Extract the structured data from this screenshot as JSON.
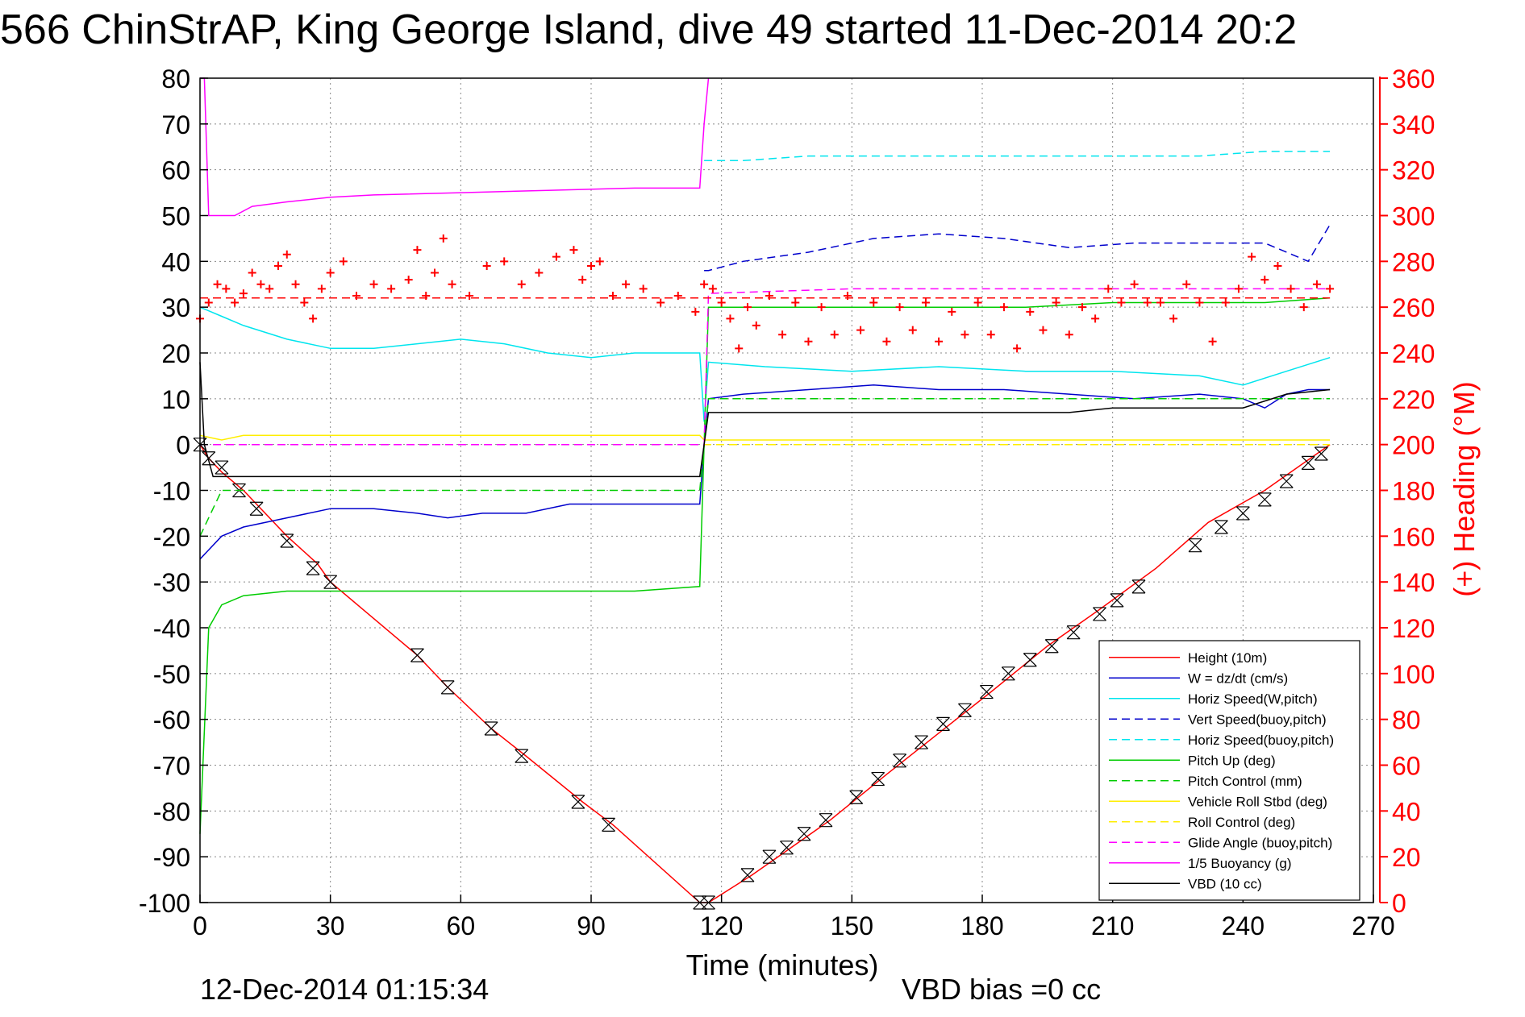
{
  "chart_data": {
    "type": "line",
    "title": "566 ChinStrAP, King George Island, dive 49 started 11-Dec-2014 20:2",
    "xlabel": "Time (minutes)",
    "ylabel": "",
    "y2label": "(+) Heading (°M)",
    "footer_left": "12-Dec-2014 01:15:34",
    "footer_right": "VBD bias =0 cc",
    "xlim": [
      0,
      270
    ],
    "ylim": [
      -100,
      80
    ],
    "y2lim": [
      0,
      360
    ],
    "xticks": [
      0,
      30,
      60,
      90,
      120,
      150,
      180,
      210,
      240,
      270
    ],
    "yticks": [
      80,
      70,
      60,
      50,
      40,
      30,
      20,
      10,
      0,
      -10,
      -20,
      -30,
      -40,
      -50,
      -60,
      -70,
      -80,
      -90,
      -100
    ],
    "y2ticks": [
      360,
      340,
      320,
      300,
      280,
      260,
      240,
      220,
      200,
      180,
      160,
      140,
      120,
      100,
      80,
      60,
      40,
      20,
      0
    ],
    "grid": true,
    "legend_position": "bottom-right",
    "colors": {
      "axis": "#000000",
      "right_axis": "#ff0000",
      "grid": "#888888"
    },
    "series": [
      {
        "name": "Height (10m)",
        "color": "#ff0000",
        "dash": "solid",
        "axis": "left",
        "x": [
          0,
          2,
          5,
          10,
          15,
          20,
          27,
          30,
          50,
          57,
          67,
          75,
          88,
          95,
          115,
          117,
          127,
          133,
          145,
          158,
          170,
          182,
          195,
          207,
          220,
          232,
          245,
          260
        ],
        "y": [
          0,
          -3,
          -6,
          -10,
          -15,
          -20,
          -26,
          -30,
          -46,
          -53,
          -62,
          -68,
          -78,
          -83,
          -100,
          -100,
          -94,
          -90,
          -82,
          -72,
          -63,
          -54,
          -44,
          -36,
          -27,
          -17,
          -10,
          0
        ],
        "markers_x": [
          0,
          2,
          5,
          9,
          13,
          20,
          26,
          30,
          50,
          57,
          67,
          74,
          87,
          94,
          115,
          117,
          126,
          131,
          135,
          139,
          144,
          151,
          156,
          161,
          166,
          171,
          176,
          181,
          186,
          191,
          196,
          201,
          207,
          211,
          216,
          229,
          235,
          240,
          245,
          250,
          255,
          258
        ],
        "markers_y": [
          0,
          -3,
          -5,
          -10,
          -14,
          -21,
          -27,
          -30,
          -46,
          -53,
          -62,
          -68,
          -78,
          -83,
          -100,
          -100,
          -94,
          -90,
          -88,
          -85,
          -82,
          -77,
          -73,
          -69,
          -65,
          -61,
          -58,
          -54,
          -50,
          -47,
          -44,
          -41,
          -37,
          -34,
          -31,
          -22,
          -18,
          -15,
          -12,
          -8,
          -4,
          -2
        ]
      },
      {
        "name": "W = dz/dt (cm/s)",
        "color": "#0000cc",
        "dash": "solid",
        "axis": "left",
        "x": [
          0,
          5,
          10,
          20,
          30,
          40,
          50,
          57,
          65,
          75,
          85,
          95,
          105,
          115,
          116,
          117,
          125,
          140,
          155,
          170,
          185,
          200,
          215,
          230,
          240,
          245,
          250,
          255,
          260
        ],
        "y": [
          -25,
          -20,
          -18,
          -16,
          -14,
          -14,
          -15,
          -16,
          -15,
          -15,
          -13,
          -13,
          -13,
          -13,
          0,
          10,
          11,
          12,
          13,
          12,
          12,
          11,
          10,
          11,
          10,
          8,
          11,
          12,
          12
        ]
      },
      {
        "name": "Horiz Speed(W,pitch)",
        "color": "#00e5ee",
        "dash": "solid",
        "axis": "left",
        "x": [
          0,
          5,
          10,
          20,
          30,
          40,
          50,
          60,
          70,
          80,
          90,
          100,
          110,
          115,
          116,
          117,
          130,
          150,
          170,
          190,
          210,
          230,
          240,
          250,
          260
        ],
        "y": [
          30,
          28,
          26,
          23,
          21,
          21,
          22,
          23,
          22,
          20,
          19,
          20,
          20,
          20,
          5,
          18,
          17,
          16,
          17,
          16,
          16,
          15,
          13,
          16,
          19
        ]
      },
      {
        "name": "Vert Speed(buoy,pitch)",
        "color": "#0000cc",
        "dash": "dashed",
        "axis": "left",
        "x": [
          116,
          117,
          125,
          140,
          155,
          170,
          185,
          200,
          215,
          230,
          245,
          255,
          260
        ],
        "y": [
          38,
          38,
          40,
          42,
          45,
          46,
          45,
          43,
          44,
          44,
          44,
          40,
          48
        ]
      },
      {
        "name": "Horiz Speed(buoy,pitch)",
        "color": "#00e5ee",
        "dash": "dashed",
        "axis": "left",
        "x": [
          116,
          117,
          125,
          140,
          155,
          170,
          185,
          200,
          215,
          230,
          245,
          255,
          260
        ],
        "y": [
          62,
          62,
          62,
          63,
          63,
          63,
          63,
          63,
          63,
          63,
          64,
          64,
          64
        ]
      },
      {
        "name": "Pitch Up (deg)",
        "color": "#00cc00",
        "dash": "solid",
        "axis": "left",
        "x": [
          0,
          2,
          5,
          10,
          20,
          40,
          60,
          80,
          100,
          115,
          116,
          117,
          130,
          150,
          170,
          190,
          210,
          230,
          245,
          260
        ],
        "y": [
          -85,
          -40,
          -35,
          -33,
          -32,
          -32,
          -32,
          -32,
          -32,
          -31,
          0,
          30,
          30,
          30,
          30,
          30,
          31,
          31,
          31,
          32
        ]
      },
      {
        "name": "Pitch Control (mm)",
        "color": "#00cc00",
        "dash": "dashed",
        "axis": "left",
        "x": [
          0,
          5,
          10,
          30,
          60,
          90,
          115,
          116,
          117,
          130,
          160,
          190,
          220,
          245,
          250,
          260
        ],
        "y": [
          -20,
          -10,
          -10,
          -10,
          -10,
          -10,
          -10,
          0,
          10,
          10,
          10,
          10,
          10,
          10,
          10,
          10
        ]
      },
      {
        "name": "Vehicle Roll Stbd (deg)",
        "color": "#ffee00",
        "dash": "solid",
        "axis": "left",
        "x": [
          0,
          5,
          10,
          30,
          60,
          90,
          115,
          116,
          117,
          150,
          190,
          230,
          250,
          260
        ],
        "y": [
          2,
          1,
          2,
          2,
          2,
          2,
          2,
          1,
          1,
          1,
          1,
          1,
          1,
          1
        ]
      },
      {
        "name": "Roll Control (deg)",
        "color": "#ffee00",
        "dash": "dashed",
        "axis": "left",
        "x": [
          0,
          5,
          10,
          30,
          60,
          90,
          115,
          117,
          150,
          190,
          230,
          245,
          250,
          260
        ],
        "y": [
          0,
          0,
          0,
          0,
          0,
          0,
          0,
          0,
          0,
          0,
          0,
          0,
          0,
          0
        ]
      },
      {
        "name": "Glide Angle (buoy,pitch)",
        "color": "#ff00ff",
        "dash": "dashed",
        "axis": "left",
        "x": [
          0,
          30,
          60,
          90,
          115,
          116,
          117,
          150,
          190,
          230,
          260
        ],
        "y": [
          0,
          0,
          0,
          0,
          0,
          0,
          33,
          34,
          34,
          34,
          34
        ]
      },
      {
        "name": "1/5 Buoyancy (g)",
        "color": "#ff00ff",
        "dash": "solid",
        "axis": "left",
        "x": [
          0,
          1,
          2,
          5,
          8,
          12,
          20,
          30,
          40,
          60,
          80,
          100,
          115,
          116,
          117
        ],
        "y": [
          80,
          80,
          50,
          50,
          50,
          52,
          53,
          54,
          54.5,
          55,
          55.5,
          56,
          56,
          70,
          80
        ]
      },
      {
        "name": "VBD (10 cc)",
        "color": "#000000",
        "dash": "solid",
        "axis": "left",
        "x": [
          0,
          1,
          3,
          5,
          10,
          30,
          60,
          90,
          115,
          116,
          117,
          150,
          200,
          210,
          240,
          250,
          260
        ],
        "y": [
          18,
          0,
          -7,
          -7,
          -7,
          -7,
          -7,
          -7,
          -7,
          0,
          7,
          7,
          7,
          8,
          8,
          11,
          12
        ]
      },
      {
        "name": "",
        "color": "#ff0000",
        "dash": "dashed",
        "axis": "right",
        "marker": "none",
        "x": [
          0,
          260
        ],
        "y": [
          264,
          264
        ]
      },
      {
        "name": "",
        "color": "#ff0000",
        "dash": "none",
        "axis": "right",
        "marker": "plus",
        "x": [
          0,
          2,
          4,
          6,
          8,
          10,
          12,
          14,
          16,
          18,
          20,
          22,
          24,
          26,
          28,
          30,
          33,
          36,
          40,
          44,
          48,
          50,
          52,
          54,
          56,
          58,
          62,
          66,
          70,
          74,
          78,
          82,
          86,
          88,
          90,
          92,
          95,
          98,
          102,
          106,
          110,
          114,
          116,
          118,
          120,
          122,
          124,
          126,
          128,
          131,
          134,
          137,
          140,
          143,
          146,
          149,
          152,
          155,
          158,
          161,
          164,
          167,
          170,
          173,
          176,
          179,
          182,
          185,
          188,
          191,
          194,
          197,
          200,
          203,
          206,
          209,
          212,
          215,
          218,
          221,
          224,
          227,
          230,
          233,
          236,
          239,
          242,
          245,
          248,
          251,
          254,
          257,
          260
        ],
        "y": [
          255,
          262,
          270,
          268,
          262,
          266,
          275,
          270,
          268,
          278,
          283,
          270,
          262,
          255,
          268,
          275,
          280,
          265,
          270,
          268,
          272,
          285,
          265,
          275,
          290,
          270,
          265,
          278,
          280,
          270,
          275,
          282,
          285,
          272,
          278,
          280,
          265,
          270,
          268,
          262,
          265,
          258,
          270,
          268,
          262,
          255,
          242,
          260,
          252,
          265,
          248,
          262,
          245,
          260,
          248,
          265,
          250,
          262,
          245,
          260,
          250,
          262,
          245,
          258,
          248,
          262,
          248,
          260,
          242,
          258,
          250,
          262,
          248,
          260,
          255,
          268,
          262,
          270,
          262,
          262,
          255,
          270,
          262,
          245,
          262,
          268,
          282,
          272,
          278,
          268,
          260,
          270,
          268
        ]
      }
    ]
  }
}
